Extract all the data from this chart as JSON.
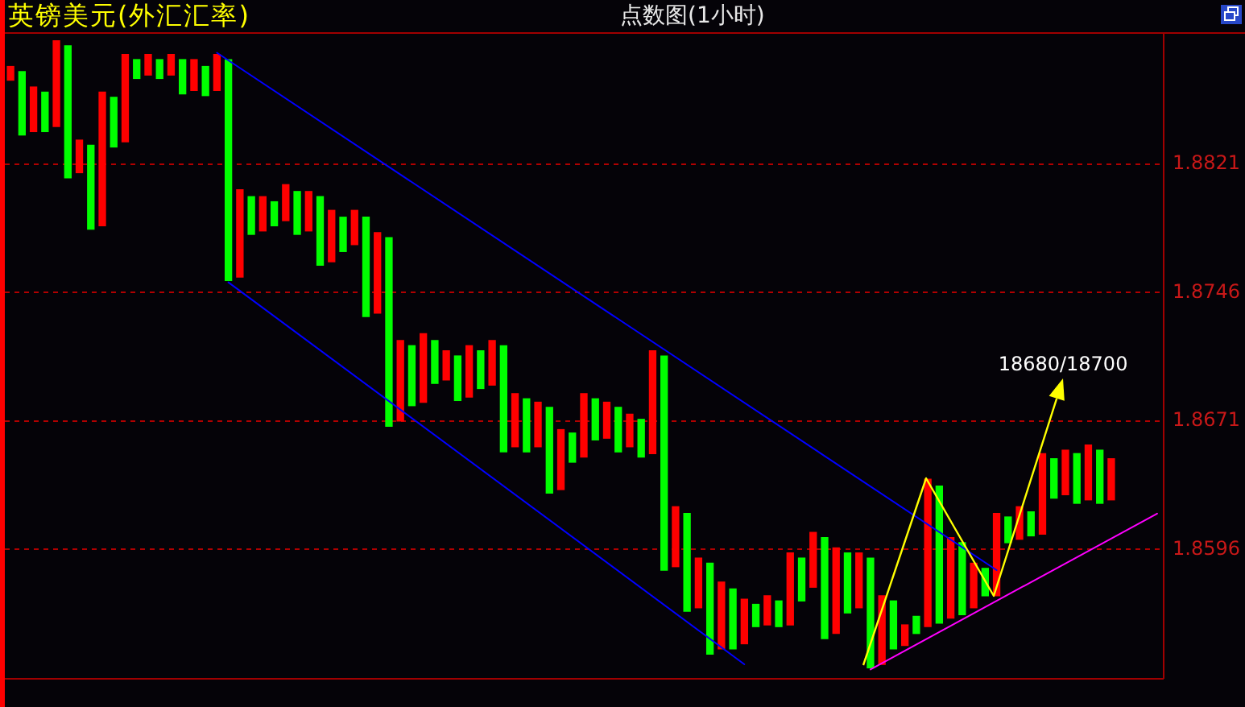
{
  "chart_data": {
    "type": "bar",
    "title": "英镑美元(外汇汇率)",
    "subtitle": "点数图(1小时)",
    "categories": [
      null,
      null,
      null,
      null,
      null,
      null,
      null,
      null,
      null,
      null,
      null,
      null,
      null,
      null,
      null,
      null,
      null,
      null,
      null,
      null,
      null,
      null,
      null,
      null,
      null,
      null,
      null,
      null,
      null,
      null,
      null,
      null,
      null,
      null,
      null,
      null,
      null,
      null,
      null,
      null,
      null,
      null,
      null,
      null,
      null,
      null,
      null,
      null,
      null,
      null,
      null,
      null,
      null,
      null,
      null,
      null,
      null,
      null,
      null,
      null,
      null,
      null,
      null,
      null,
      null,
      null,
      null,
      null,
      null,
      null,
      null,
      null,
      null,
      null,
      null,
      null,
      null,
      null,
      null,
      null,
      null,
      null,
      null,
      null,
      null,
      null,
      null,
      null,
      null,
      null,
      null,
      null,
      null,
      null,
      null,
      null,
      null,
      null,
      null,
      null,
      null
    ],
    "series": [
      {
        "colors": [
          "#ff0000",
          "#00ff00",
          "#ff0000",
          "#00ff00",
          "#ff0000",
          "#00ff00",
          "#ff0000",
          "#00ff00",
          "#ff0000",
          "#00ff00",
          "#ff0000",
          "#00ff00",
          "#ff0000",
          "#00ff00",
          "#ff0000",
          "#00ff00",
          "#ff0000",
          "#00ff00",
          "#ff0000",
          "#00ff00",
          "#ff0000",
          "#00ff00",
          "#ff0000",
          "#00ff00",
          "#ff0000",
          "#00ff00",
          "#ff0000",
          "#00ff00",
          "#ff0000",
          "#00ff00",
          "#ff0000",
          "#00ff00",
          "#ff0000",
          "#00ff00",
          "#ff0000",
          "#00ff00",
          "#ff0000",
          "#00ff00",
          "#ff0000",
          "#00ff00",
          "#ff0000",
          "#00ff00",
          "#ff0000",
          "#00ff00",
          "#ff0000",
          "#00ff00",
          "#ff0000",
          "#00ff00",
          "#ff0000",
          "#00ff00",
          "#ff0000",
          "#00ff00",
          "#ff0000",
          "#00ff00",
          "#ff0000",
          "#00ff00",
          "#ff0000",
          "#00ff00",
          "#ff0000",
          "#00ff00",
          "#ff0000",
          "#00ff00",
          "#ff0000",
          "#00ff00",
          "#ff0000",
          "#00ff00",
          "#ff0000",
          "#00ff00",
          "#ff0000",
          "#00ff00",
          "#ff0000",
          "#00ff00",
          "#ff0000",
          "#00ff00",
          "#ff0000",
          "#00ff00",
          "#ff0000",
          "#00ff00",
          "#ff0000",
          "#00ff00",
          "#ff0000",
          "#00ff00",
          "#ff0000",
          "#00ff00",
          "#ff0000",
          "#00ff00",
          "#ff0000",
          "#00ff00",
          "#ff0000",
          "#00ff00",
          "#ff0000",
          "#00ff00",
          "#ff0000",
          "#00ff00",
          "#ff0000",
          "#00ff00",
          "#ff0000",
          "#00ff00",
          "#ff0000",
          "#00ff00",
          "#ff0000"
        ],
        "values": [
          0.0008,
          0.0037,
          0.0026,
          0.0023,
          0.005,
          0.0077,
          0.0019,
          0.0049,
          0.0078,
          0.0029,
          0.0051,
          0.0011,
          0.0012,
          0.0011,
          0.0012,
          0.002,
          0.0018,
          0.0017,
          0.0021,
          0.0129,
          0.0051,
          0.0022,
          0.002,
          0.0014,
          0.0021,
          0.0025,
          0.0023,
          0.004,
          0.003,
          0.002,
          0.002,
          0.0058,
          0.0047,
          0.011,
          0.0047,
          0.0035,
          0.004,
          0.0025,
          0.0017,
          0.0026,
          0.003,
          0.0022,
          0.0026,
          0.0062,
          0.0031,
          0.0031,
          0.0026,
          0.005,
          0.0035,
          0.0017,
          0.0037,
          0.0024,
          0.0021,
          0.0026,
          0.0019,
          0.0022,
          0.006,
          0.0125,
          0.0035,
          0.0057,
          0.0029,
          0.0053,
          0.0039,
          0.0035,
          0.0026,
          0.0013,
          0.0017,
          0.0015,
          0.0042,
          0.0025,
          0.0032,
          0.0059,
          0.005,
          0.0035,
          0.0032,
          0.0064,
          0.004,
          0.0028,
          0.0012,
          0.001,
          0.0086,
          0.008,
          0.0047,
          0.0042,
          0.0026,
          0.0016,
          0.0048,
          0.0015,
          0.0019,
          0.0014,
          0.0047,
          0.0023,
          0.0026,
          0.0029,
          0.0032,
          0.0031,
          0.0024,
          null,
          null,
          null,
          null
        ],
        "base": [
          1.887,
          1.8838,
          1.884,
          1.884,
          1.8843,
          1.8813,
          1.8816,
          1.8783,
          1.8785,
          1.8831,
          1.8834,
          1.8871,
          1.8873,
          1.8871,
          1.8873,
          1.8862,
          1.8864,
          1.8861,
          1.8864,
          1.8753,
          1.8755,
          1.878,
          1.8782,
          1.8785,
          1.8788,
          1.878,
          1.8782,
          1.8762,
          1.8764,
          1.877,
          1.8774,
          1.8732,
          1.8734,
          1.8668,
          1.8671,
          1.868,
          1.8682,
          1.8693,
          1.8695,
          1.8683,
          1.8685,
          1.869,
          1.8692,
          1.8653,
          1.8656,
          1.8653,
          1.8656,
          1.8629,
          1.8631,
          1.8647,
          1.865,
          1.866,
          1.8661,
          1.8653,
          1.8656,
          1.865,
          1.8652,
          1.8584,
          1.8586,
          1.856,
          1.8562,
          1.8535,
          1.8538,
          1.8538,
          1.8541,
          1.8551,
          1.8552,
          1.8551,
          1.8552,
          1.8566,
          1.8574,
          1.8544,
          1.8547,
          1.8559,
          1.8562,
          1.8527,
          1.8529,
          1.8538,
          1.854,
          1.8547,
          1.8551,
          1.8553,
          1.8556,
          1.8558,
          1.8562,
          1.8569,
          1.8569,
          1.86,
          1.8602,
          1.8604,
          1.8605,
          1.8626,
          1.8628,
          1.8623,
          1.8625,
          1.8623,
          1.8625,
          null,
          null,
          null,
          null
        ]
      },
      {
        "type": "line",
        "color": "#0000ff",
        "values": [
          null,
          null,
          null,
          null,
          null,
          null,
          null,
          null,
          null,
          null,
          null,
          null,
          null,
          null,
          null,
          null,
          null,
          null,
          1.8886,
          null,
          null,
          null,
          null,
          null,
          null,
          null,
          null,
          null,
          null,
          null,
          null,
          null,
          null,
          null,
          null,
          null,
          null,
          null,
          null,
          null,
          null,
          null,
          null,
          null,
          null,
          null,
          null,
          null,
          null,
          null,
          null,
          null,
          null,
          null,
          null,
          null,
          null,
          null,
          null,
          null,
          null,
          null,
          null,
          null,
          null,
          null,
          null,
          null,
          null,
          null,
          null,
          null,
          null,
          null,
          null,
          null,
          null,
          null,
          null,
          null,
          null,
          null,
          null,
          null,
          null,
          null,
          1.8584,
          null,
          null,
          null,
          null,
          null,
          null,
          null,
          null,
          null,
          null,
          null,
          null,
          null,
          null
        ]
      },
      {
        "type": "line",
        "color": "#0000ff",
        "values": [
          null,
          null,
          null,
          null,
          null,
          null,
          null,
          null,
          null,
          null,
          null,
          null,
          null,
          null,
          null,
          null,
          null,
          null,
          null,
          1.8752,
          null,
          null,
          null,
          null,
          null,
          null,
          null,
          null,
          null,
          null,
          null,
          null,
          null,
          null,
          null,
          null,
          null,
          null,
          null,
          null,
          null,
          null,
          null,
          null,
          null,
          null,
          null,
          null,
          null,
          null,
          null,
          null,
          null,
          null,
          null,
          null,
          null,
          null,
          null,
          null,
          null,
          null,
          null,
          null,
          1.8529,
          null,
          null,
          null,
          null,
          null,
          null,
          null,
          null,
          null,
          null,
          null,
          null,
          null,
          null,
          null,
          null,
          null,
          null,
          null,
          null,
          null,
          null,
          null,
          null,
          null,
          null,
          null,
          null,
          null,
          null,
          null,
          null,
          null,
          null,
          null,
          null
        ]
      },
      {
        "type": "line",
        "color": "#ff00ff",
        "values": [
          null,
          null,
          null,
          null,
          null,
          null,
          null,
          null,
          null,
          null,
          null,
          null,
          null,
          null,
          null,
          null,
          null,
          null,
          null,
          null,
          null,
          null,
          null,
          null,
          null,
          null,
          null,
          null,
          null,
          null,
          null,
          null,
          null,
          null,
          null,
          null,
          null,
          null,
          null,
          null,
          null,
          null,
          null,
          null,
          null,
          null,
          null,
          null,
          null,
          null,
          null,
          null,
          null,
          null,
          null,
          null,
          null,
          null,
          null,
          null,
          null,
          null,
          null,
          null,
          null,
          null,
          null,
          null,
          null,
          null,
          null,
          null,
          null,
          null,
          null,
          1.8526,
          null,
          null,
          null,
          null,
          null,
          null,
          null,
          null,
          null,
          null,
          null,
          null,
          null,
          null,
          null,
          null,
          null,
          null,
          null,
          null,
          null,
          null,
          null,
          null,
          1.8617
        ]
      }
    ],
    "ylim": [
      1.8521,
      1.8898
    ],
    "yticks": [
      1.8596,
      1.8671,
      1.8746,
      1.8821
    ],
    "grid": "y",
    "tick_labels": "y",
    "marker": "none",
    "annotations": [
      "18680/18700"
    ]
  }
}
